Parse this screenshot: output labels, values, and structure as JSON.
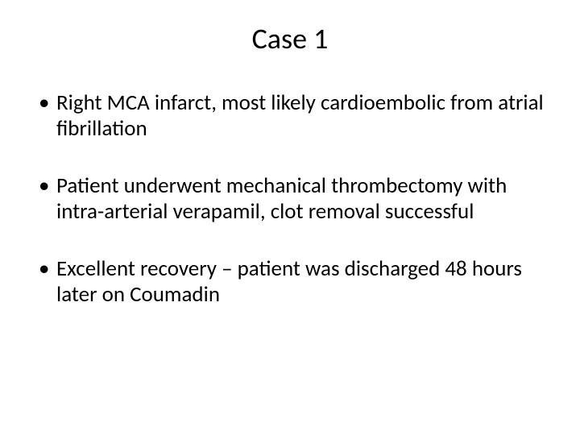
{
  "slide": {
    "title": "Case 1",
    "title_fontsize": 36,
    "body_fontsize": 27,
    "background_color": "#ffffff",
    "text_color": "#000000",
    "bullets": [
      "Right MCA infarct, most likely cardioembolic from atrial fibrillation",
      "Patient underwent mechanical thrombectomy with intra-arterial verapamil, clot removal successful",
      "Excellent recovery – patient was discharged 48 hours later on Coumadin"
    ]
  }
}
